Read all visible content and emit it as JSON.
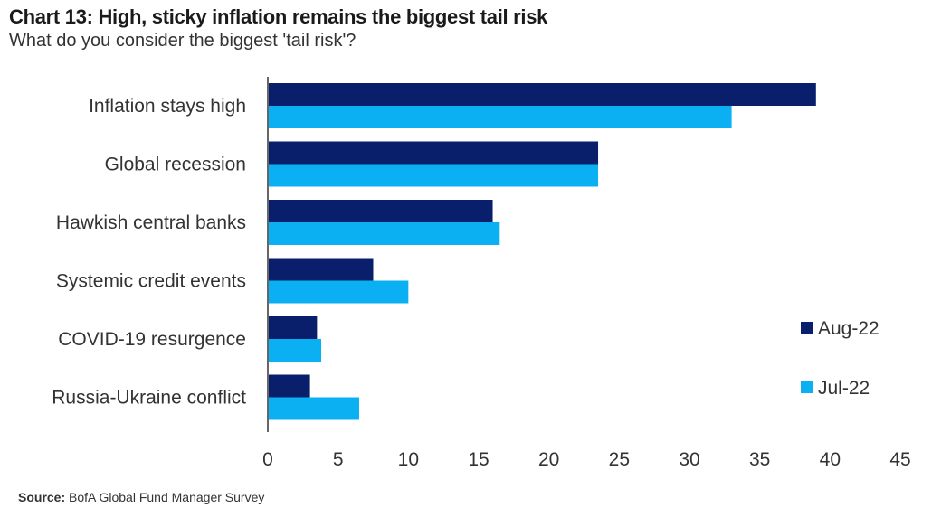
{
  "header": {
    "title": "Chart 13: High, sticky inflation remains the biggest tail risk",
    "subtitle": "What do you consider the biggest 'tail risk'?"
  },
  "footer": {
    "source_label": "Source:",
    "source_text": "BofA Global Fund Manager Survey"
  },
  "colors": {
    "aug22": "#0a1f6b",
    "jul22": "#0ab0f2",
    "axis": "#333333"
  },
  "chart_data": {
    "type": "bar",
    "orientation": "horizontal",
    "title": "Chart 13: High, sticky inflation remains the biggest tail risk",
    "subtitle": "What do you consider the biggest 'tail risk'?",
    "categories": [
      "Inflation stays high",
      "Global recession",
      "Hawkish central banks",
      "Systemic credit events",
      "COVID-19 resurgence",
      "Russia-Ukraine conflict"
    ],
    "series": [
      {
        "name": "Aug-22",
        "color": "#0a1f6b",
        "values": [
          39,
          23.5,
          16,
          7.5,
          3.5,
          3
        ]
      },
      {
        "name": "Jul-22",
        "color": "#0ab0f2",
        "values": [
          33,
          23.5,
          16.5,
          10,
          3.8,
          6.5
        ]
      }
    ],
    "xlim": [
      0,
      45
    ],
    "xticks": [
      "0",
      "5",
      "10",
      "15",
      "20",
      "25",
      "30",
      "35",
      "40",
      "45"
    ],
    "xlabel": "",
    "ylabel": "",
    "grid": false,
    "legend_position": "right"
  }
}
